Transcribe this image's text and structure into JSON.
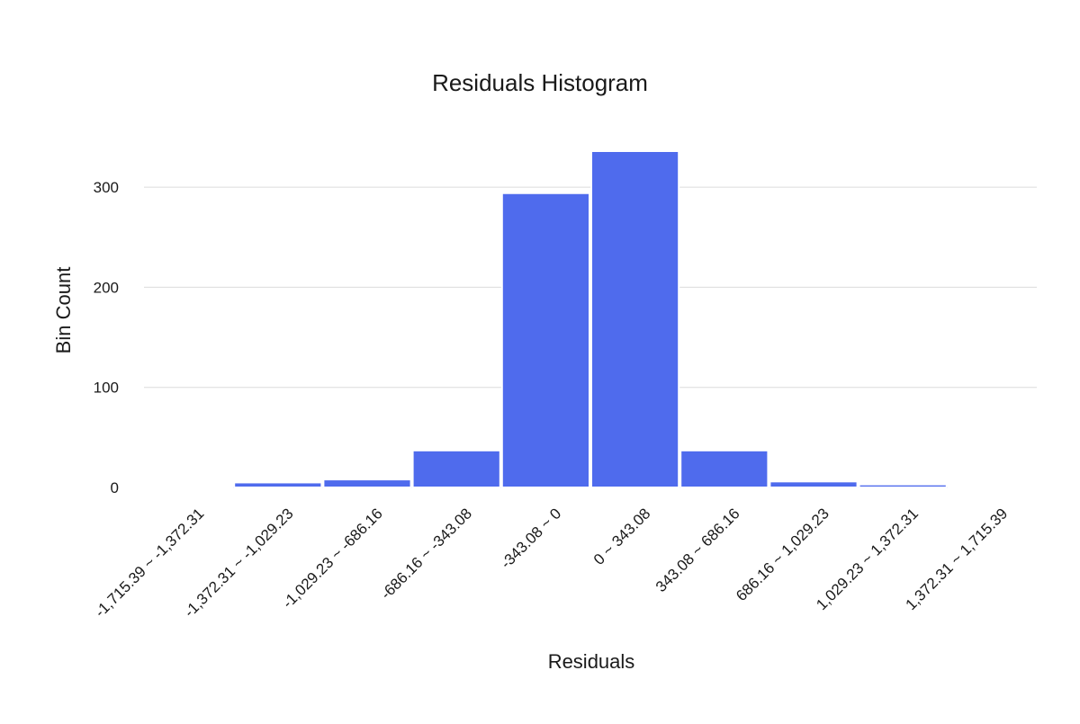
{
  "chart_data": {
    "type": "bar",
    "title": "Residuals Histogram",
    "xlabel": "Residuals",
    "ylabel": "Bin Count",
    "categories": [
      "-1,715.39 ~ -1,372.31",
      "-1,372.31 ~ -1,029.23",
      "-1,029.23 ~ -686.16",
      "-686.16 ~ -343.08",
      "-343.08 ~ 0",
      "0 ~ 343.08",
      "343.08 ~ 686.16",
      "686.16 ~ 1,029.23",
      "1,029.23 ~ 1,372.31",
      "1,372.31 ~ 1,715.39"
    ],
    "values": [
      1,
      5,
      8,
      37,
      294,
      336,
      37,
      6,
      3,
      1
    ],
    "ylim": [
      0,
      336
    ],
    "yticks": [
      0,
      100,
      200,
      300
    ],
    "grid": true,
    "legend": "none",
    "colors": {
      "bar": "#4f6bed"
    }
  }
}
